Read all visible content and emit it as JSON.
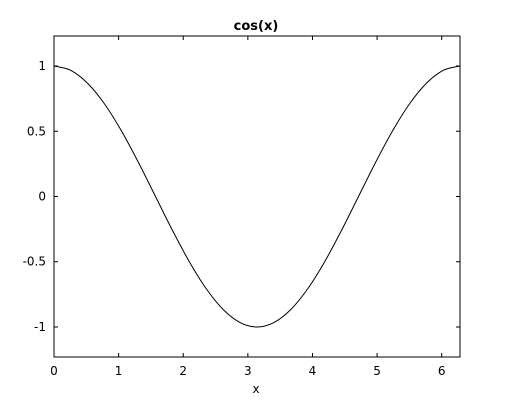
{
  "chart_data": {
    "type": "line",
    "title": "cos(x)",
    "xlabel": "x",
    "ylabel": "",
    "xlim": [
      0,
      6.2832
    ],
    "ylim": [
      -1.23,
      1.23
    ],
    "x_ticks": [
      0,
      1,
      2,
      3,
      4,
      5,
      6
    ],
    "x_tick_labels": [
      "0",
      "1",
      "2",
      "3",
      "4",
      "5",
      "6"
    ],
    "y_ticks": [
      1,
      0.5,
      0,
      -0.5,
      -1
    ],
    "y_tick_labels": [
      "1",
      "0.5",
      "0",
      "-0.5",
      "-1"
    ],
    "grid": false,
    "legend": "none",
    "line_color": "#000000",
    "series": [
      {
        "x": [
          0,
          0.2618,
          0.5236,
          0.7854,
          1.0472,
          1.309,
          1.5708,
          1.8326,
          2.0944,
          2.3562,
          2.618,
          2.8798,
          3.1416,
          3.4034,
          3.6652,
          3.927,
          4.1888,
          4.4506,
          4.7124,
          4.9742,
          5.236,
          5.4978,
          5.7596,
          6.0214,
          6.2832
        ],
        "y": [
          1,
          0.9659,
          0.866,
          0.7071,
          0.5,
          0.2588,
          0,
          -0.2588,
          -0.5,
          -0.7071,
          -0.866,
          -0.9659,
          -1,
          -0.9659,
          -0.866,
          -0.7071,
          -0.5,
          -0.2588,
          0,
          0.2588,
          0.5,
          0.7071,
          0.866,
          0.9659,
          1
        ]
      }
    ]
  }
}
